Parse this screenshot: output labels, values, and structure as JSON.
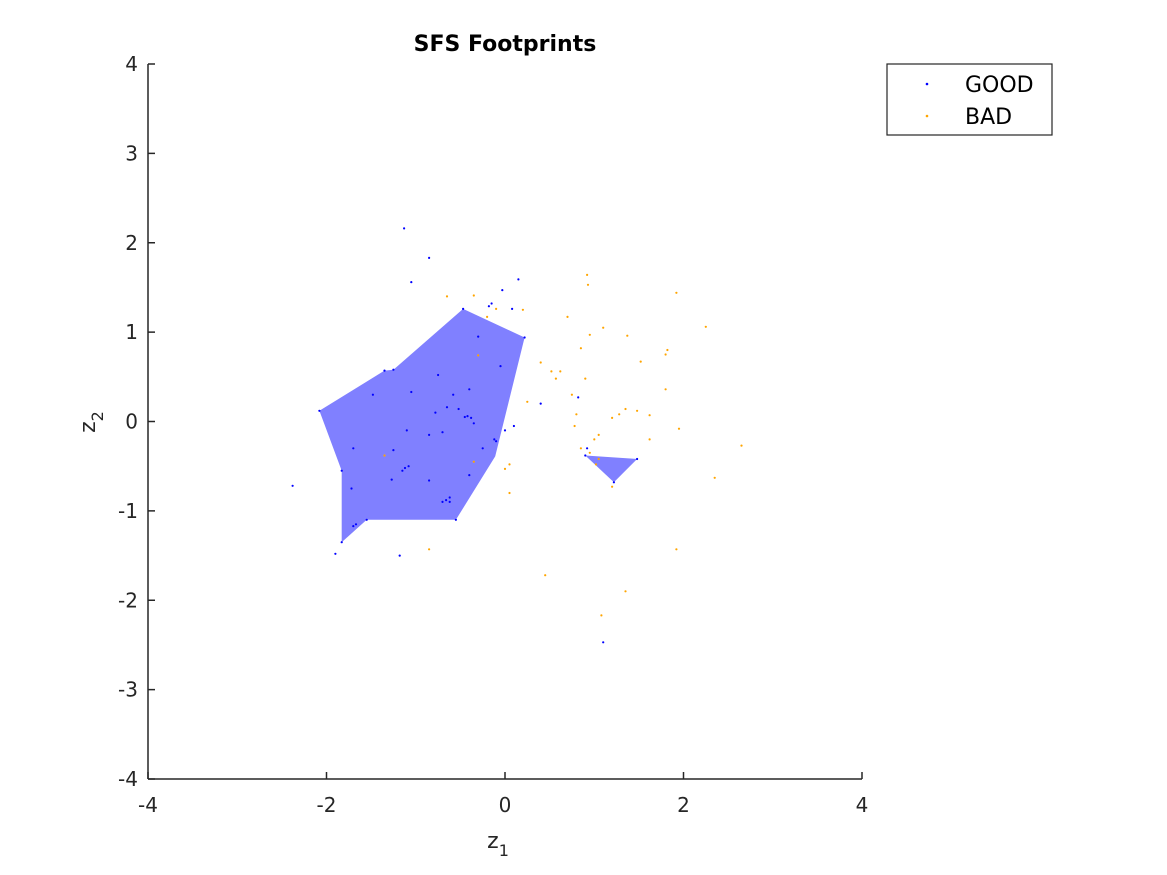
{
  "chart_data": {
    "type": "scatter",
    "title": "SFS Footprints",
    "xlabel": "z",
    "xlabel_sub": "1",
    "ylabel": "z",
    "ylabel_sub": "2",
    "xlim": [
      -4,
      4
    ],
    "ylim": [
      -4,
      4
    ],
    "xticks": [
      -4,
      -2,
      0,
      2,
      4
    ],
    "yticks": [
      -4,
      -3,
      -2,
      -1,
      0,
      1,
      2,
      3,
      4
    ],
    "xtick_labels": [
      "-4",
      "-2",
      "0",
      "2",
      "4"
    ],
    "ytick_labels": [
      "-4",
      "-3",
      "-2",
      "-1",
      "0",
      "1",
      "2",
      "3",
      "4"
    ],
    "grid": false,
    "legend_position": "top-right",
    "footprint_color": "#8080ff",
    "footprints": [
      [
        [
          -2.08,
          0.12
        ],
        [
          -1.35,
          0.57
        ],
        [
          -1.25,
          0.58
        ],
        [
          -0.47,
          1.26
        ],
        [
          0.22,
          0.94
        ],
        [
          -0.11,
          -0.39
        ],
        [
          -0.55,
          -1.1
        ],
        [
          -1.55,
          -1.1
        ],
        [
          -1.83,
          -1.35
        ],
        [
          -1.83,
          -0.55
        ]
      ],
      [
        [
          0.9,
          -0.38
        ],
        [
          1.48,
          -0.42
        ],
        [
          1.22,
          -0.68
        ]
      ]
    ],
    "series": [
      {
        "name": "GOOD",
        "color": "#0000ff",
        "points": [
          [
            -1.13,
            2.16
          ],
          [
            -0.85,
            1.83
          ],
          [
            -1.05,
            1.56
          ],
          [
            0.15,
            1.59
          ],
          [
            -0.03,
            1.47
          ],
          [
            -0.15,
            1.32
          ],
          [
            -0.18,
            1.29
          ],
          [
            0.08,
            1.26
          ],
          [
            -0.3,
            0.95
          ],
          [
            -1.35,
            0.57
          ],
          [
            -1.25,
            0.58
          ],
          [
            -0.75,
            0.52
          ],
          [
            -1.48,
            0.3
          ],
          [
            -1.05,
            0.33
          ],
          [
            -0.58,
            0.3
          ],
          [
            -0.4,
            0.36
          ],
          [
            -0.65,
            0.16
          ],
          [
            -0.52,
            0.14
          ],
          [
            -0.78,
            0.1
          ],
          [
            -0.45,
            0.05
          ],
          [
            -0.38,
            0.04
          ],
          [
            -0.42,
            0.06
          ],
          [
            -0.35,
            -0.02
          ],
          [
            -2.08,
            0.12
          ],
          [
            -1.1,
            -0.1
          ],
          [
            -0.85,
            -0.15
          ],
          [
            -0.7,
            -0.12
          ],
          [
            -0.12,
            -0.2
          ],
          [
            -0.1,
            -0.22
          ],
          [
            0.0,
            -0.1
          ],
          [
            -0.25,
            -0.3
          ],
          [
            -1.7,
            -0.3
          ],
          [
            -1.25,
            -0.32
          ],
          [
            -1.08,
            -0.5
          ],
          [
            -1.12,
            -0.52
          ],
          [
            -1.15,
            -0.55
          ],
          [
            -0.4,
            -0.6
          ],
          [
            -1.83,
            -0.55
          ],
          [
            -1.27,
            -0.65
          ],
          [
            -0.85,
            -0.66
          ],
          [
            -1.72,
            -0.75
          ],
          [
            -0.62,
            -0.85
          ],
          [
            -0.66,
            -0.88
          ],
          [
            -0.62,
            -0.9
          ],
          [
            -0.7,
            -0.9
          ],
          [
            -0.55,
            -1.1
          ],
          [
            -1.55,
            -1.1
          ],
          [
            -1.67,
            -1.15
          ],
          [
            -1.7,
            -1.17
          ],
          [
            -1.83,
            -1.35
          ],
          [
            -1.9,
            -1.48
          ],
          [
            -1.18,
            -1.5
          ],
          [
            -2.38,
            -0.72
          ],
          [
            0.4,
            0.2
          ],
          [
            0.82,
            0.27
          ],
          [
            0.92,
            -0.3
          ],
          [
            0.9,
            -0.38
          ],
          [
            1.22,
            -0.68
          ],
          [
            1.48,
            -0.42
          ],
          [
            1.1,
            -2.47
          ],
          [
            -0.05,
            0.62
          ],
          [
            0.22,
            0.94
          ],
          [
            -0.47,
            1.26
          ],
          [
            0.1,
            -0.05
          ]
        ]
      },
      {
        "name": "BAD",
        "color": "#ffa500",
        "points": [
          [
            0.92,
            1.64
          ],
          [
            0.93,
            1.53
          ],
          [
            1.92,
            1.44
          ],
          [
            -0.35,
            1.41
          ],
          [
            -0.65,
            1.4
          ],
          [
            -0.1,
            1.26
          ],
          [
            0.2,
            1.25
          ],
          [
            -0.2,
            1.17
          ],
          [
            0.7,
            1.17
          ],
          [
            2.25,
            1.06
          ],
          [
            1.1,
            1.05
          ],
          [
            0.95,
            0.97
          ],
          [
            1.37,
            0.96
          ],
          [
            0.85,
            0.82
          ],
          [
            1.82,
            0.8
          ],
          [
            1.8,
            0.75
          ],
          [
            -0.3,
            0.74
          ],
          [
            1.52,
            0.67
          ],
          [
            0.4,
            0.66
          ],
          [
            0.52,
            0.56
          ],
          [
            0.62,
            0.56
          ],
          [
            0.57,
            0.48
          ],
          [
            0.9,
            0.48
          ],
          [
            1.8,
            0.36
          ],
          [
            0.75,
            0.3
          ],
          [
            0.25,
            0.22
          ],
          [
            0.8,
            0.08
          ],
          [
            1.35,
            0.14
          ],
          [
            1.48,
            0.12
          ],
          [
            1.28,
            0.08
          ],
          [
            1.62,
            0.07
          ],
          [
            1.2,
            0.04
          ],
          [
            0.78,
            -0.05
          ],
          [
            1.95,
            -0.08
          ],
          [
            1.05,
            -0.15
          ],
          [
            1.0,
            -0.2
          ],
          [
            1.62,
            -0.2
          ],
          [
            2.65,
            -0.27
          ],
          [
            0.85,
            -0.3
          ],
          [
            0.95,
            -0.35
          ],
          [
            1.05,
            -0.42
          ],
          [
            1.02,
            -0.48
          ],
          [
            0.05,
            -0.48
          ],
          [
            0.0,
            -0.53
          ],
          [
            2.35,
            -0.63
          ],
          [
            1.2,
            -0.73
          ],
          [
            0.05,
            -0.8
          ],
          [
            -0.85,
            -1.43
          ],
          [
            1.92,
            -1.43
          ],
          [
            0.45,
            -1.72
          ],
          [
            1.35,
            -1.9
          ],
          [
            1.08,
            -2.17
          ],
          [
            -1.35,
            -0.38
          ],
          [
            -0.35,
            -0.45
          ]
        ]
      }
    ]
  }
}
